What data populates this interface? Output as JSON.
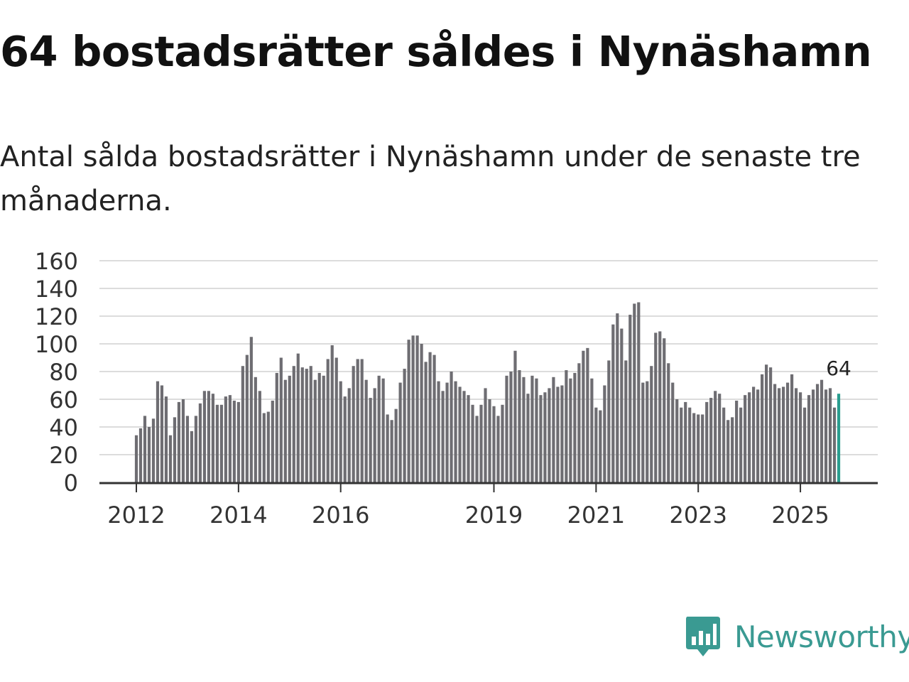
{
  "title": "64 bostadsrätter såldes i Nynäshamn",
  "subtitle": "Antal sålda bostadsrätter i Nynäshamn under de senaste tre månaderna.",
  "brand": {
    "name": "Newsworthy",
    "color": "#3a9a92",
    "icon": "newsworthy-logo-icon"
  },
  "chart_data": {
    "type": "bar",
    "title": "64 bostadsrätter såldes i Nynäshamn",
    "xlabel": "",
    "ylabel": "",
    "ylim": [
      0,
      160
    ],
    "yticks": [
      0,
      20,
      40,
      60,
      80,
      100,
      120,
      140,
      160
    ],
    "xticks": [
      {
        "label": "2012",
        "index": 0
      },
      {
        "label": "2014",
        "index": 24
      },
      {
        "label": "2016",
        "index": 48
      },
      {
        "label": "2019",
        "index": 84
      },
      {
        "label": "2021",
        "index": 108
      },
      {
        "label": "2023",
        "index": 132
      },
      {
        "label": "2025",
        "index": 156
      }
    ],
    "grid": true,
    "bar_color": "#6e6d72",
    "highlight_color": "#2a9d8f",
    "highlight_label": "64",
    "values": [
      34,
      39,
      48,
      40,
      46,
      73,
      70,
      62,
      34,
      47,
      58,
      60,
      48,
      37,
      48,
      57,
      66,
      66,
      64,
      56,
      56,
      62,
      63,
      59,
      58,
      84,
      92,
      105,
      76,
      66,
      50,
      51,
      59,
      79,
      90,
      74,
      77,
      84,
      93,
      83,
      82,
      84,
      74,
      79,
      77,
      89,
      99,
      90,
      73,
      62,
      68,
      84,
      89,
      89,
      74,
      61,
      68,
      77,
      75,
      49,
      45,
      53,
      72,
      82,
      103,
      106,
      106,
      100,
      87,
      94,
      92,
      73,
      66,
      72,
      80,
      73,
      69,
      66,
      63,
      56,
      48,
      56,
      68,
      60,
      55,
      48,
      56,
      77,
      80,
      95,
      81,
      76,
      64,
      77,
      75,
      63,
      65,
      68,
      76,
      69,
      70,
      81,
      75,
      79,
      86,
      95,
      97,
      75,
      54,
      52,
      70,
      88,
      114,
      122,
      111,
      88,
      121,
      129,
      130,
      72,
      73,
      84,
      108,
      109,
      104,
      86,
      72,
      60,
      54,
      58,
      54,
      50,
      49,
      49,
      58,
      61,
      66,
      64,
      54,
      45,
      47,
      59,
      54,
      63,
      65,
      69,
      67,
      78,
      85,
      83,
      71,
      68,
      69,
      72,
      78,
      68,
      65,
      54,
      63,
      67,
      71,
      74,
      67,
      68,
      54,
      64
    ]
  }
}
